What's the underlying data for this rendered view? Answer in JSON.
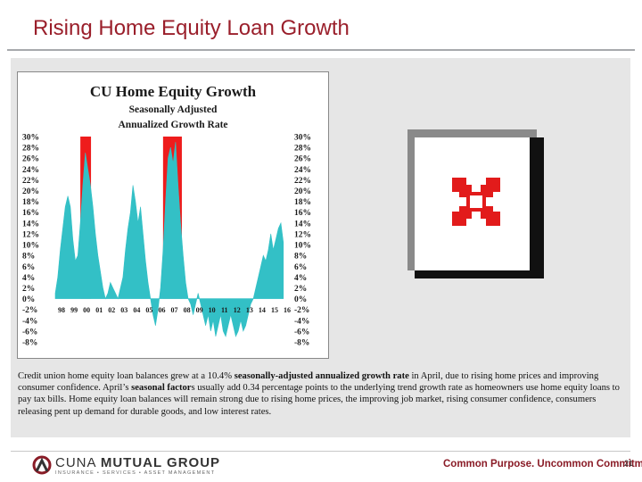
{
  "slide": {
    "title": "Rising Home Equity Loan Growth",
    "page_number": "21"
  },
  "chart_data": {
    "type": "area",
    "title": "CU Home Equity Growth",
    "subtitle": [
      "Seasonally Adjusted",
      "Annualized Growth Rate"
    ],
    "y_ticks": [
      "30%",
      "28%",
      "26%",
      "24%",
      "22%",
      "20%",
      "18%",
      "16%",
      "14%",
      "12%",
      "10%",
      "8%",
      "6%",
      "4%",
      "2%",
      "0%",
      "-2%",
      "-4%",
      "-6%",
      "-8%"
    ],
    "ylim": [
      -8,
      30
    ],
    "x_ticks": [
      "98",
      "99",
      "00",
      "01",
      "02",
      "03",
      "04",
      "05",
      "06",
      "07",
      "08",
      "09",
      "10",
      "11",
      "12",
      "13",
      "14",
      "15",
      "16"
    ],
    "x_range": [
      1998.0,
      2016.5
    ],
    "colors": {
      "fill": "#33c0c6",
      "highlight": "#ee1c1c",
      "text": "#1a1a1a"
    },
    "highlight_bands": [
      {
        "x_start": 2000.0,
        "x_end": 2000.85,
        "y_from": 0,
        "y_to": 30
      },
      {
        "x_start": 2006.6,
        "x_end": 2008.1,
        "y_from": 0,
        "y_to": 30
      }
    ],
    "series": [
      {
        "points": [
          [
            1998.0,
            1
          ],
          [
            1998.2,
            4
          ],
          [
            1998.4,
            9
          ],
          [
            1998.6,
            13
          ],
          [
            1998.8,
            17
          ],
          [
            1999.0,
            19
          ],
          [
            1999.2,
            17
          ],
          [
            1999.4,
            11
          ],
          [
            1999.6,
            7
          ],
          [
            1999.8,
            8
          ],
          [
            2000.0,
            14
          ],
          [
            2000.2,
            21
          ],
          [
            2000.4,
            27
          ],
          [
            2000.6,
            24
          ],
          [
            2000.8,
            21
          ],
          [
            2001.0,
            17
          ],
          [
            2001.2,
            12
          ],
          [
            2001.4,
            8
          ],
          [
            2001.6,
            5
          ],
          [
            2001.8,
            2
          ],
          [
            2002.0,
            0
          ],
          [
            2002.2,
            1
          ],
          [
            2002.4,
            3
          ],
          [
            2002.6,
            2
          ],
          [
            2002.8,
            1
          ],
          [
            2003.0,
            0
          ],
          [
            2003.2,
            2
          ],
          [
            2003.4,
            4
          ],
          [
            2003.6,
            9
          ],
          [
            2003.8,
            13
          ],
          [
            2004.0,
            16
          ],
          [
            2004.2,
            21
          ],
          [
            2004.4,
            18
          ],
          [
            2004.6,
            14
          ],
          [
            2004.8,
            17
          ],
          [
            2005.0,
            12
          ],
          [
            2005.2,
            7
          ],
          [
            2005.4,
            3
          ],
          [
            2005.6,
            0
          ],
          [
            2005.8,
            -3
          ],
          [
            2006.0,
            -5
          ],
          [
            2006.2,
            -2
          ],
          [
            2006.4,
            2
          ],
          [
            2006.6,
            9
          ],
          [
            2006.8,
            18
          ],
          [
            2007.0,
            26
          ],
          [
            2007.2,
            28
          ],
          [
            2007.4,
            25
          ],
          [
            2007.6,
            29
          ],
          [
            2007.8,
            21
          ],
          [
            2008.0,
            14
          ],
          [
            2008.2,
            8
          ],
          [
            2008.4,
            3
          ],
          [
            2008.6,
            0
          ],
          [
            2008.8,
            -1
          ],
          [
            2009.0,
            -3
          ],
          [
            2009.2,
            -1
          ],
          [
            2009.4,
            1
          ],
          [
            2009.6,
            -1
          ],
          [
            2009.8,
            -3
          ],
          [
            2010.0,
            -5
          ],
          [
            2010.2,
            -3
          ],
          [
            2010.4,
            -6
          ],
          [
            2010.6,
            -4
          ],
          [
            2010.8,
            -7
          ],
          [
            2011.0,
            -5
          ],
          [
            2011.2,
            -3
          ],
          [
            2011.4,
            -6
          ],
          [
            2011.6,
            -7
          ],
          [
            2011.8,
            -5
          ],
          [
            2012.0,
            -3
          ],
          [
            2012.2,
            -5
          ],
          [
            2012.4,
            -7
          ],
          [
            2012.6,
            -6
          ],
          [
            2012.8,
            -4
          ],
          [
            2013.0,
            -6
          ],
          [
            2013.2,
            -5
          ],
          [
            2013.4,
            -3
          ],
          [
            2013.6,
            -1
          ],
          [
            2013.8,
            0
          ],
          [
            2014.0,
            2
          ],
          [
            2014.2,
            4
          ],
          [
            2014.4,
            6
          ],
          [
            2014.6,
            8
          ],
          [
            2014.8,
            7
          ],
          [
            2015.0,
            9
          ],
          [
            2015.2,
            12
          ],
          [
            2015.4,
            9
          ],
          [
            2015.6,
            11
          ],
          [
            2015.8,
            13
          ],
          [
            2016.0,
            14
          ],
          [
            2016.2,
            10.4
          ]
        ]
      }
    ]
  },
  "placeholder": {
    "icon": "missing-image-icon"
  },
  "caption": {
    "p1": "Credit union home equity loan balances grew at a 10.4% ",
    "b1": "seasonally-adjusted annualized growth rate",
    "p2": " in April, due to rising home prices and improving consumer confidence. April’s ",
    "b2": "seasonal factor",
    "p3": "s usually add 0.34 percentage points to the underlying trend growth rate as homeowners use home equity loans to pay tax bills. Home equity loan balances will remain strong due to rising home prices, the improving job market, rising consumer confidence, consumers releasing pent up demand for durable goods, and  low interest rates."
  },
  "footer": {
    "logo_word_a": "CUNA ",
    "logo_word_b": "MUTUAL GROUP",
    "logo_sub": "INSURANCE • SERVICES • ASSET MANAGEMENT",
    "tagline": "Common Purpose. Uncommon Commitment."
  }
}
